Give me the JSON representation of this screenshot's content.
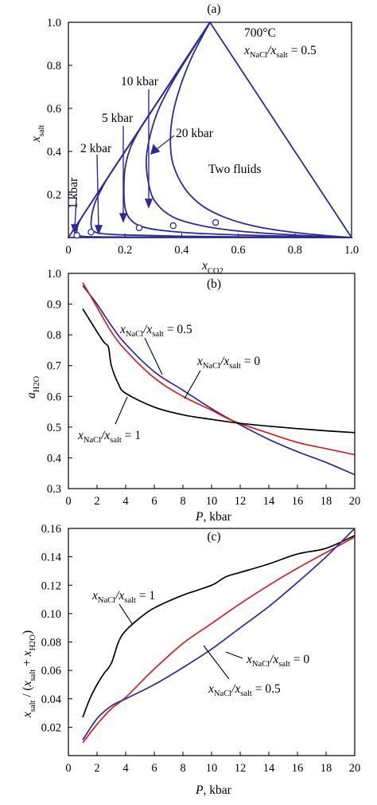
{
  "chart_data": [
    {
      "type": "line",
      "panel_label": "(a)",
      "xlabel": "x",
      "xlabel_sub": "CO2",
      "ylabel": "x",
      "ylabel_sub": "salt",
      "xlim": [
        0,
        1.0
      ],
      "ylim": [
        0,
        1.0
      ],
      "x_ticks": [
        "0",
        "0.2",
        "0.4",
        "0.6",
        "0.8",
        "1.0"
      ],
      "y_ticks": [
        "0.2",
        "0.4",
        "0.6",
        "0.8",
        "1.0"
      ],
      "temperature": "700°C",
      "ratio_label": {
        "a": "x",
        "a_sub": "NaCl",
        "b": "/x",
        "b_sub": "salt",
        "eq": " = 0.5"
      },
      "region_label": "Two fluids",
      "triangle": [
        [
          0,
          0
        ],
        [
          0.5,
          1.0
        ],
        [
          1.0,
          0
        ]
      ],
      "series": [
        {
          "name": "1 kbar",
          "x": [
            0.5,
            0.3,
            0.15,
            0.08,
            0.05,
            0.038,
            0.032,
            0.03,
            0.031,
            0.036,
            0.05,
            0.1,
            0.3,
            0.6,
            1.0
          ],
          "y": [
            1.0,
            0.6,
            0.3,
            0.16,
            0.1,
            0.072,
            0.05,
            0.03,
            0.018,
            0.01,
            0.006,
            0.003,
            0.002,
            0.001,
            0.0
          ]
        },
        {
          "name": "2 kbar",
          "x": [
            0.5,
            0.3,
            0.2,
            0.14,
            0.1,
            0.085,
            0.08,
            0.082,
            0.09,
            0.12,
            0.2,
            0.4,
            0.7,
            1.0
          ],
          "y": [
            1.0,
            0.6,
            0.4,
            0.28,
            0.18,
            0.12,
            0.07,
            0.045,
            0.028,
            0.018,
            0.012,
            0.006,
            0.002,
            0.0
          ]
        },
        {
          "name": "5 kbar",
          "x": [
            0.5,
            0.33,
            0.26,
            0.22,
            0.2,
            0.196,
            0.2,
            0.215,
            0.25,
            0.32,
            0.45,
            0.65,
            0.85,
            1.0
          ],
          "y": [
            1.0,
            0.66,
            0.52,
            0.42,
            0.32,
            0.22,
            0.14,
            0.09,
            0.055,
            0.035,
            0.02,
            0.01,
            0.004,
            0.0
          ]
        },
        {
          "name": "10 kbar",
          "x": [
            0.5,
            0.38,
            0.32,
            0.29,
            0.275,
            0.285,
            0.31,
            0.37,
            0.47,
            0.6,
            0.75,
            0.9,
            1.0
          ],
          "y": [
            1.0,
            0.75,
            0.6,
            0.48,
            0.36,
            0.24,
            0.16,
            0.095,
            0.055,
            0.03,
            0.015,
            0.005,
            0.0
          ]
        },
        {
          "name": "20 kbar",
          "x": [
            0.5,
            0.44,
            0.4,
            0.37,
            0.36,
            0.37,
            0.41,
            0.47,
            0.55,
            0.65,
            0.77,
            0.9,
            1.0
          ],
          "y": [
            1.0,
            0.85,
            0.72,
            0.58,
            0.45,
            0.34,
            0.23,
            0.15,
            0.095,
            0.055,
            0.028,
            0.01,
            0.0
          ]
        }
      ],
      "markers": {
        "x": [
          0.03,
          0.08,
          0.25,
          0.37,
          0.52
        ],
        "y": [
          0.01,
          0.025,
          0.045,
          0.055,
          0.07
        ]
      }
    },
    {
      "type": "line",
      "panel_label": "(b)",
      "xlabel": "P, kbar",
      "ylabel": "a",
      "ylabel_sub": "H2O",
      "xlim": [
        0,
        20
      ],
      "ylim": [
        0.3,
        1.0
      ],
      "x_ticks": [
        "0",
        "2",
        "4",
        "6",
        "8",
        "10",
        "12",
        "14",
        "16",
        "18",
        "20"
      ],
      "y_ticks": [
        "0.3",
        "0.4",
        "0.5",
        "0.6",
        "0.7",
        "0.8",
        "0.9",
        "1.0"
      ],
      "series": [
        {
          "name": "xNaCl/xsalt = 0.5",
          "color": "#2e2a9a",
          "x": [
            1,
            2,
            3,
            4,
            6,
            8,
            10,
            11.5,
            14,
            16,
            18,
            20
          ],
          "y": [
            0.96,
            0.9,
            0.83,
            0.77,
            0.68,
            0.62,
            0.56,
            0.52,
            0.46,
            0.42,
            0.385,
            0.345
          ]
        },
        {
          "name": "xNaCl/xsalt = 0",
          "color": "#d42020",
          "x": [
            1,
            2,
            3,
            4,
            6,
            8,
            10,
            11.5,
            14,
            16,
            18,
            20
          ],
          "y": [
            0.97,
            0.89,
            0.81,
            0.75,
            0.66,
            0.6,
            0.555,
            0.52,
            0.48,
            0.45,
            0.43,
            0.41
          ]
        },
        {
          "name": "xNaCl/xsalt = 1",
          "color": "#000000",
          "x": [
            1,
            2,
            2.5,
            2.8,
            3,
            3.5,
            4,
            6,
            8,
            10,
            12,
            14,
            16,
            18,
            20
          ],
          "y": [
            0.885,
            0.81,
            0.775,
            0.76,
            0.7,
            0.64,
            0.61,
            0.565,
            0.54,
            0.525,
            0.512,
            0.503,
            0.495,
            0.488,
            0.482
          ]
        }
      ]
    },
    {
      "type": "line",
      "panel_label": "(c)",
      "xlabel": "P, kbar",
      "ylabel": "x",
      "xlim": [
        0,
        20
      ],
      "ylim": [
        0,
        0.16
      ],
      "x_ticks": [
        "0",
        "2",
        "4",
        "6",
        "8",
        "10",
        "12",
        "14",
        "16",
        "18",
        "20"
      ],
      "y_ticks": [
        "0.02",
        "0.04",
        "0.06",
        "0.08",
        "0.10",
        "0.12",
        "0.14",
        "0.16"
      ],
      "series": [
        {
          "name": "xNaCl/xsalt = 1",
          "color": "#000000",
          "x": [
            1,
            1.5,
            2,
            2.5,
            3,
            3.5,
            4,
            5,
            6,
            8,
            10,
            11,
            12,
            14,
            16,
            18,
            20
          ],
          "y": [
            0.027,
            0.04,
            0.05,
            0.058,
            0.065,
            0.08,
            0.088,
            0.097,
            0.104,
            0.113,
            0.12,
            0.126,
            0.129,
            0.135,
            0.142,
            0.146,
            0.155
          ]
        },
        {
          "name": "xNaCl/xsalt = 0",
          "color": "#d42020",
          "x": [
            1,
            2,
            3,
            4,
            6,
            8,
            10,
            12,
            14,
            16,
            18,
            20
          ],
          "y": [
            0.009,
            0.022,
            0.033,
            0.041,
            0.061,
            0.079,
            0.093,
            0.107,
            0.12,
            0.132,
            0.143,
            0.154
          ]
        },
        {
          "name": "xNaCl/xsalt = 0.5",
          "color": "#2e2a9a",
          "x": [
            1,
            2,
            3,
            4,
            6,
            8,
            10,
            12,
            14,
            16,
            18,
            20
          ],
          "y": [
            0.011,
            0.026,
            0.035,
            0.04,
            0.05,
            0.062,
            0.075,
            0.09,
            0.105,
            0.122,
            0.14,
            0.16
          ]
        }
      ]
    }
  ]
}
